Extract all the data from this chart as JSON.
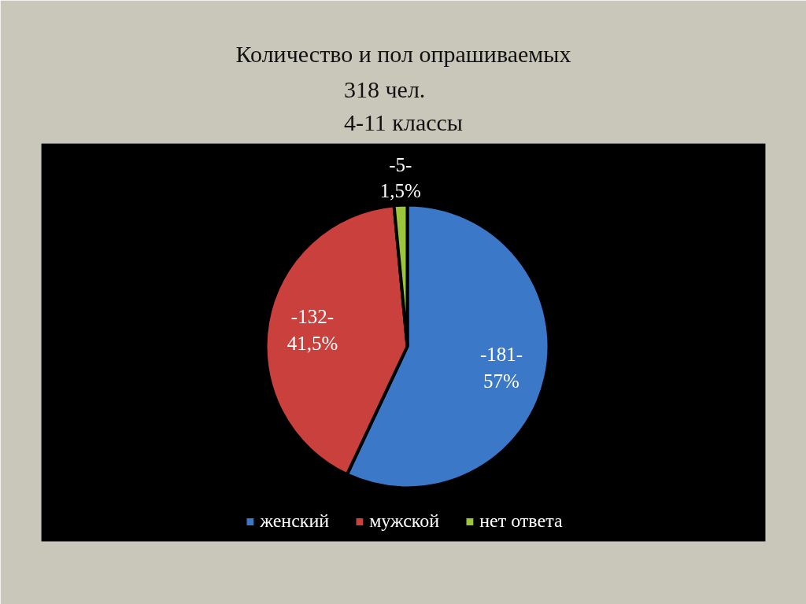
{
  "chart_data": {
    "type": "pie",
    "title": "Количество и пол опрашиваемых",
    "subtitle": "318 чел.\n4-11 классы",
    "categories": [
      "женский",
      "мужской",
      "нет ответа"
    ],
    "values": [
      57,
      41.5,
      1.5
    ],
    "colors": [
      "#3b78c8",
      "#c9403c",
      "#9ac53c"
    ],
    "value_labels": [
      "-181-\n57%",
      "-132-\n41,5%",
      "-5-\n1,5%"
    ],
    "legend": "bottom"
  }
}
